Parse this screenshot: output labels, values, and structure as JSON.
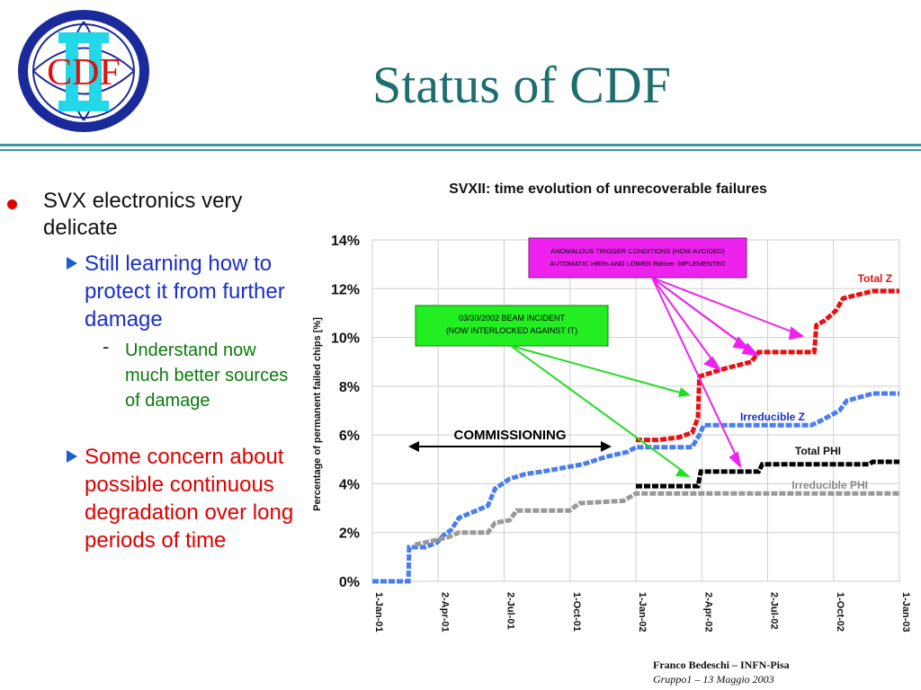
{
  "slide": {
    "title": "Status of CDF",
    "logo_text": "CDF",
    "colors": {
      "title": "#1e6e6e",
      "rule": "#3a9a9a",
      "bullet_red": "#e00000",
      "blue_text": "#1a2fc8",
      "green_text": "#0b7a0b"
    }
  },
  "bullets": {
    "level1": "SVX electronics very delicate",
    "level2_a": "Still learning how to protect it from further damage",
    "level3": "Understand now much better sources of damage",
    "level2_b": "Some concern about possible continuous degradation over long periods of time"
  },
  "footer": {
    "line1": "Franco Bedeschi – INFN-Pisa",
    "line2": "Gruppo1 – 13 Maggio 2003"
  },
  "chart_data": {
    "type": "line",
    "title": "SVXII: time evolution of unrecoverable failures",
    "xlabel": "",
    "ylabel": "Percentage of permanent failed chips [%]",
    "x_ticks": [
      "1-Jan-01",
      "2-Apr-01",
      "2-Jul-01",
      "1-Oct-01",
      "1-Jan-02",
      "2-Apr-02",
      "2-Jul-02",
      "1-Oct-02",
      "1-Jan-03"
    ],
    "y_ticks": [
      "0%",
      "2%",
      "4%",
      "6%",
      "8%",
      "10%",
      "12%",
      "14%"
    ],
    "xlim": [
      "2001-01-01",
      "2003-01-01"
    ],
    "ylim": [
      0,
      14
    ],
    "grid": true,
    "series": [
      {
        "name": "Irreducible Z",
        "color": "#4a7ef0",
        "points": [
          [
            "2001-01-01",
            0.0
          ],
          [
            "2001-02-20",
            0.0
          ],
          [
            "2001-02-21",
            1.4
          ],
          [
            "2001-03-15",
            1.4
          ],
          [
            "2001-04-01",
            1.6
          ],
          [
            "2001-04-10",
            1.9
          ],
          [
            "2001-04-20",
            2.1
          ],
          [
            "2001-05-01",
            2.6
          ],
          [
            "2001-05-25",
            2.9
          ],
          [
            "2001-06-10",
            3.1
          ],
          [
            "2001-06-20",
            3.8
          ],
          [
            "2001-07-10",
            4.2
          ],
          [
            "2001-08-01",
            4.4
          ],
          [
            "2001-08-25",
            4.5
          ],
          [
            "2001-10-20",
            4.8
          ],
          [
            "2001-11-20",
            5.1
          ],
          [
            "2001-12-20",
            5.3
          ],
          [
            "2002-01-01",
            5.5
          ],
          [
            "2002-02-01",
            5.5
          ],
          [
            "2002-03-20",
            5.5
          ],
          [
            "2002-03-30",
            6.0
          ],
          [
            "2002-04-05",
            6.4
          ],
          [
            "2002-07-01",
            6.4
          ],
          [
            "2002-09-01",
            6.4
          ],
          [
            "2002-09-15",
            6.6
          ],
          [
            "2002-10-10",
            7.0
          ],
          [
            "2002-10-20",
            7.4
          ],
          [
            "2002-11-25",
            7.7
          ],
          [
            "2003-01-01",
            7.7
          ]
        ]
      },
      {
        "name": "Total Z",
        "color": "#e81010",
        "points": [
          [
            "2002-01-01",
            5.8
          ],
          [
            "2002-02-01",
            5.8
          ],
          [
            "2002-03-01",
            5.9
          ],
          [
            "2002-03-20",
            6.1
          ],
          [
            "2002-03-28",
            6.7
          ],
          [
            "2002-03-30",
            8.4
          ],
          [
            "2002-05-01",
            8.7
          ],
          [
            "2002-06-10",
            9.0
          ],
          [
            "2002-06-20",
            9.4
          ],
          [
            "2002-09-05",
            9.4
          ],
          [
            "2002-09-08",
            10.5
          ],
          [
            "2002-09-20",
            10.7
          ],
          [
            "2002-10-05",
            11.1
          ],
          [
            "2002-10-15",
            11.6
          ],
          [
            "2002-11-25",
            11.9
          ],
          [
            "2003-01-01",
            11.9
          ]
        ]
      },
      {
        "name": "Total PHI",
        "color": "#000000",
        "points": [
          [
            "2002-01-01",
            3.9
          ],
          [
            "2002-03-28",
            3.9
          ],
          [
            "2002-04-01",
            4.5
          ],
          [
            "2002-06-20",
            4.5
          ],
          [
            "2002-06-25",
            4.8
          ],
          [
            "2002-11-20",
            4.8
          ],
          [
            "2002-11-25",
            4.9
          ],
          [
            "2003-01-01",
            4.9
          ]
        ]
      },
      {
        "name": "Irreducible PHI",
        "color": "#999999",
        "points": [
          [
            "2001-03-01",
            1.5
          ],
          [
            "2001-04-15",
            1.8
          ],
          [
            "2001-05-01",
            2.0
          ],
          [
            "2001-06-10",
            2.0
          ],
          [
            "2001-06-20",
            2.4
          ],
          [
            "2001-07-10",
            2.5
          ],
          [
            "2001-07-20",
            2.9
          ],
          [
            "2001-10-01",
            2.9
          ],
          [
            "2001-10-15",
            3.2
          ],
          [
            "2001-12-15",
            3.3
          ],
          [
            "2002-01-01",
            3.6
          ],
          [
            "2003-01-01",
            3.6
          ]
        ]
      }
    ],
    "annotations": {
      "commissioning": "COMMISSIONING",
      "beam_incident_line1": "03/30/2002 BEAM INCIDENT",
      "beam_incident_line2": "(NOW INTERLOCKED AGAINST IT)",
      "trigger_line1": "ANOMALOUS TRIGGER CONDITIONS (HOW AVOIDED)",
      "trigger_line2": "AUTOMATIC HRRs AND LOWER Rdriver IMPLEMENTED"
    },
    "arrow_colors": {
      "green": "#22dd22",
      "magenta": "#ee22ee"
    }
  }
}
